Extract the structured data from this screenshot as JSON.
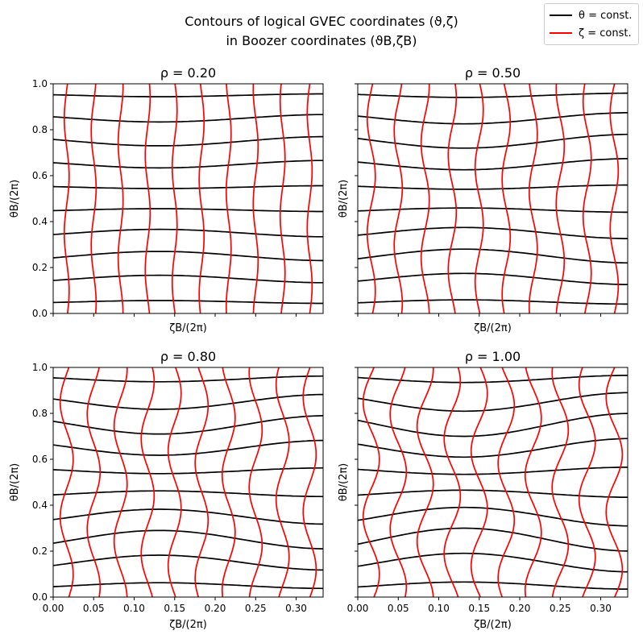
{
  "figure": {
    "title_line1": "Contours of logical GVEC coordinates (ϑ,ζ)",
    "title_line2": "in Boozer coordinates (ϑB,ζB)",
    "legend": [
      {
        "label": "θ = const.",
        "color": "#000000"
      },
      {
        "label": "ζ = const.",
        "color": "#ff0000"
      }
    ]
  },
  "chart_data": [
    {
      "type": "line",
      "title": "ρ = 0.20",
      "xlabel": "ζB/(2π)",
      "ylabel": "θB/(2π)",
      "xlim": [
        0,
        0.3333
      ],
      "ylim": [
        0,
        1
      ],
      "xticks": [
        0,
        0.05,
        0.1,
        0.15,
        0.2,
        0.25,
        0.3
      ],
      "yticks": [
        0,
        0.2,
        0.4,
        0.6,
        0.8,
        1.0
      ],
      "theta_const_levels": [
        0.05,
        0.15,
        0.25,
        0.35,
        0.45,
        0.55,
        0.65,
        0.75,
        0.85,
        0.95
      ],
      "zeta_const_levels": [
        0.0167,
        0.05,
        0.0833,
        0.1167,
        0.15,
        0.1833,
        0.2167,
        0.25,
        0.2833,
        0.3167
      ],
      "theta_distortion": 0.02,
      "zeta_distortion": 0.003
    },
    {
      "type": "line",
      "title": "ρ = 0.50",
      "xlabel": "ζB/(2π)",
      "ylabel": "θB/(2π)",
      "xlim": [
        0,
        0.3333
      ],
      "ylim": [
        0,
        1
      ],
      "xticks": [
        0,
        0.05,
        0.1,
        0.15,
        0.2,
        0.25,
        0.3
      ],
      "yticks": [
        0,
        0.2,
        0.4,
        0.6,
        0.8,
        1.0
      ],
      "theta_const_levels": [
        0.05,
        0.15,
        0.25,
        0.35,
        0.45,
        0.55,
        0.65,
        0.75,
        0.85,
        0.95
      ],
      "zeta_const_levels": [
        0.0167,
        0.05,
        0.0833,
        0.1167,
        0.15,
        0.1833,
        0.2167,
        0.25,
        0.2833,
        0.3167
      ],
      "theta_distortion": 0.03,
      "zeta_distortion": 0.005
    },
    {
      "type": "line",
      "title": "ρ = 0.80",
      "xlabel": "ζB/(2π)",
      "ylabel": "θB/(2π)",
      "xlim": [
        0,
        0.3333
      ],
      "ylim": [
        0,
        1
      ],
      "xticks": [
        0,
        0.05,
        0.1,
        0.15,
        0.2,
        0.25,
        0.3
      ],
      "yticks": [
        0,
        0.2,
        0.4,
        0.6,
        0.8,
        1.0
      ],
      "theta_const_levels": [
        0.05,
        0.15,
        0.25,
        0.35,
        0.45,
        0.55,
        0.65,
        0.75,
        0.85,
        0.95
      ],
      "zeta_const_levels": [
        0.0167,
        0.05,
        0.0833,
        0.1167,
        0.15,
        0.1833,
        0.2167,
        0.25,
        0.2833,
        0.3167
      ],
      "theta_distortion": 0.04,
      "zeta_distortion": 0.008
    },
    {
      "type": "line",
      "title": "ρ = 1.00",
      "xlabel": "ζB/(2π)",
      "ylabel": "θB/(2π)",
      "xlim": [
        0,
        0.3333
      ],
      "ylim": [
        0,
        1
      ],
      "xticks": [
        0,
        0.05,
        0.1,
        0.15,
        0.2,
        0.25,
        0.3
      ],
      "yticks": [
        0,
        0.2,
        0.4,
        0.6,
        0.8,
        1.0
      ],
      "theta_const_levels": [
        0.05,
        0.15,
        0.25,
        0.35,
        0.45,
        0.55,
        0.65,
        0.75,
        0.85,
        0.95
      ],
      "zeta_const_levels": [
        0.0167,
        0.05,
        0.0833,
        0.1167,
        0.15,
        0.1833,
        0.2167,
        0.25,
        0.2833,
        0.3167
      ],
      "theta_distortion": 0.05,
      "zeta_distortion": 0.01
    }
  ]
}
